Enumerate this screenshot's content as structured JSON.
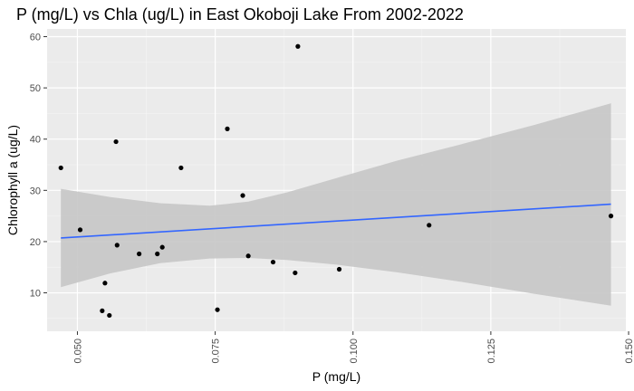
{
  "chart_data": {
    "type": "scatter",
    "title": "P (mg/L) vs Chla (ug/L) in East Okoboji Lake From 2002-2022",
    "xlabel": "P (mg/L)",
    "ylabel": "Chlorophyll a (ug/L)",
    "xlim": [
      0.0445,
      0.1495
    ],
    "ylim": [
      2.5,
      61.5
    ],
    "x_ticks": [
      {
        "value": 0.05,
        "label": "0.050"
      },
      {
        "value": 0.075,
        "label": "0.075"
      },
      {
        "value": 0.1,
        "label": "0.100"
      },
      {
        "value": 0.125,
        "label": "0.125"
      },
      {
        "value": 0.15,
        "label": "0.150"
      }
    ],
    "y_ticks": [
      {
        "value": 10,
        "label": "10"
      },
      {
        "value": 20,
        "label": "20"
      },
      {
        "value": 30,
        "label": "30"
      },
      {
        "value": 40,
        "label": "40"
      },
      {
        "value": 50,
        "label": "50"
      },
      {
        "value": 60,
        "label": "60"
      }
    ],
    "grid": true,
    "x_tick_rotation": -90,
    "colors": {
      "panel": "#ebebeb",
      "grid_major": "#ffffff",
      "point": "#000000",
      "trend": "#3366ff",
      "ribbon": "#c6c6c6"
    },
    "points": [
      {
        "x": 0.047,
        "y": 34.4
      },
      {
        "x": 0.0505,
        "y": 22.3
      },
      {
        "x": 0.0545,
        "y": 6.5
      },
      {
        "x": 0.055,
        "y": 11.9
      },
      {
        "x": 0.0558,
        "y": 5.6
      },
      {
        "x": 0.057,
        "y": 39.5
      },
      {
        "x": 0.0572,
        "y": 19.3
      },
      {
        "x": 0.0612,
        "y": 17.6
      },
      {
        "x": 0.0645,
        "y": 17.6
      },
      {
        "x": 0.0654,
        "y": 18.9
      },
      {
        "x": 0.0688,
        "y": 34.4
      },
      {
        "x": 0.0754,
        "y": 6.7
      },
      {
        "x": 0.0772,
        "y": 42.0
      },
      {
        "x": 0.08,
        "y": 29.0
      },
      {
        "x": 0.081,
        "y": 17.2
      },
      {
        "x": 0.0855,
        "y": 16.0
      },
      {
        "x": 0.0895,
        "y": 13.9
      },
      {
        "x": 0.09,
        "y": 58.1
      },
      {
        "x": 0.0975,
        "y": 14.6
      },
      {
        "x": 0.1138,
        "y": 23.2
      },
      {
        "x": 0.1468,
        "y": 25.0
      }
    ],
    "trend_line": [
      {
        "x": 0.047,
        "y": 20.7
      },
      {
        "x": 0.1468,
        "y": 27.3
      }
    ],
    "confidence_band": [
      {
        "x": 0.047,
        "lower": 11.1,
        "upper": 30.3
      },
      {
        "x": 0.056,
        "lower": 13.8,
        "upper": 28.7
      },
      {
        "x": 0.065,
        "lower": 15.8,
        "upper": 27.5
      },
      {
        "x": 0.074,
        "lower": 16.7,
        "upper": 27.0
      },
      {
        "x": 0.081,
        "lower": 16.8,
        "upper": 27.8
      },
      {
        "x": 0.088,
        "lower": 16.4,
        "upper": 29.6
      },
      {
        "x": 0.097,
        "lower": 15.5,
        "upper": 32.4
      },
      {
        "x": 0.108,
        "lower": 14.0,
        "upper": 35.8
      },
      {
        "x": 0.12,
        "lower": 12.1,
        "upper": 39.1
      },
      {
        "x": 0.133,
        "lower": 9.8,
        "upper": 42.8
      },
      {
        "x": 0.1468,
        "lower": 7.5,
        "upper": 47.0
      }
    ]
  }
}
